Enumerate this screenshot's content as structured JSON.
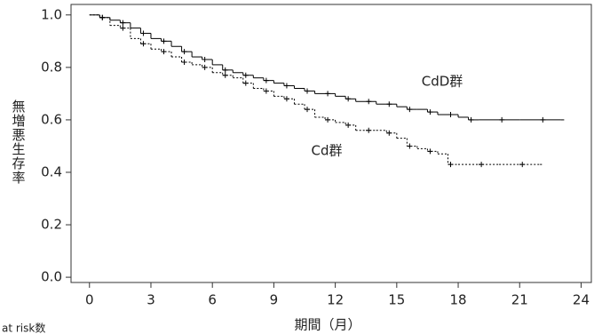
{
  "chart_data": {
    "type": "step",
    "xlabel": "期間（月）",
    "ylabel": "無増悪生存率",
    "footnote": "at risk数",
    "annotations": [
      "CdD群",
      "Cd群"
    ],
    "xlim": [
      -0.9,
      24.5
    ],
    "ylim": [
      -0.02,
      1.04
    ],
    "xticks": [
      0,
      3,
      6,
      9,
      12,
      15,
      18,
      21,
      24
    ],
    "yticks": [
      {
        "value": 0,
        "label": "0.0"
      },
      0.2,
      0.4,
      0.6,
      0.8,
      {
        "value": 1,
        "label": "1.0"
      }
    ],
    "series": [
      {
        "name": "CdD群",
        "color": "#000000",
        "dash": "solid",
        "x": [
          0,
          0.5,
          1,
          1.5,
          2,
          2.5,
          3,
          3.5,
          4,
          4.5,
          5,
          5.5,
          6,
          6.5,
          7,
          7.5,
          8,
          8.5,
          9,
          9.5,
          10,
          10.5,
          11,
          11.5,
          12,
          12.5,
          13,
          13.5,
          14,
          14.5,
          15,
          15.5,
          16,
          16.5,
          17,
          17.5,
          18,
          18.5,
          19,
          20,
          21,
          22,
          23
        ],
        "values": [
          1.0,
          0.99,
          0.98,
          0.97,
          0.95,
          0.93,
          0.91,
          0.9,
          0.88,
          0.86,
          0.84,
          0.83,
          0.81,
          0.79,
          0.78,
          0.77,
          0.76,
          0.75,
          0.74,
          0.73,
          0.72,
          0.71,
          0.7,
          0.7,
          0.69,
          0.68,
          0.67,
          0.67,
          0.66,
          0.66,
          0.65,
          0.64,
          0.64,
          0.63,
          0.62,
          0.62,
          0.61,
          0.6,
          0.6,
          0.6,
          0.6,
          0.6,
          0.6
        ]
      },
      {
        "name": "Cd群",
        "color": "#000000",
        "dash": "dotted",
        "x": [
          0,
          0.5,
          1,
          1.5,
          2,
          2.5,
          3,
          3.5,
          4,
          4.5,
          5,
          5.5,
          6,
          6.5,
          7,
          7.5,
          8,
          8.5,
          9,
          9.5,
          10,
          10.5,
          11,
          11.5,
          12,
          12.5,
          13,
          13.5,
          14,
          14.5,
          15,
          15.5,
          16,
          16.5,
          17,
          17.5,
          18,
          19,
          20,
          21,
          22
        ],
        "values": [
          1.0,
          0.99,
          0.96,
          0.95,
          0.91,
          0.89,
          0.87,
          0.86,
          0.84,
          0.82,
          0.81,
          0.8,
          0.78,
          0.77,
          0.76,
          0.74,
          0.72,
          0.71,
          0.69,
          0.68,
          0.66,
          0.64,
          0.61,
          0.6,
          0.59,
          0.58,
          0.56,
          0.56,
          0.56,
          0.55,
          0.53,
          0.5,
          0.49,
          0.48,
          0.47,
          0.43,
          0.43,
          0.43,
          0.43,
          0.43,
          0.43
        ]
      }
    ]
  }
}
